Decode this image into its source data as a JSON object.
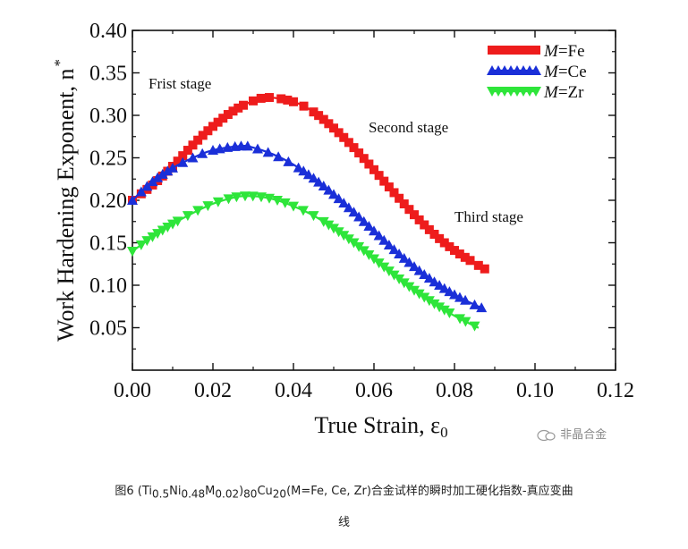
{
  "chart_data": {
    "type": "line",
    "xlabel": "True Strain, ε",
    "xlabel_sub": "0",
    "ylabel": "Work Hardening Exponent, n",
    "ylabel_sup": "*",
    "xlim": [
      0.0,
      0.12
    ],
    "ylim": [
      0.0,
      0.4
    ],
    "x_ticks": [
      "0.00",
      "0.02",
      "0.04",
      "0.06",
      "0.08",
      "0.10",
      "0.12"
    ],
    "y_ticks": [
      "0.05",
      "0.10",
      "0.15",
      "0.20",
      "0.25",
      "0.30",
      "0.35",
      "0.40"
    ],
    "legend_position": "top-right",
    "series": [
      {
        "name": "M=Fe",
        "legend_italic": "M",
        "legend_rest": "=Fe",
        "color": "#ee1c1c",
        "marker": "square",
        "x": [
          0.0,
          0.005,
          0.01,
          0.015,
          0.02,
          0.025,
          0.03,
          0.034,
          0.04,
          0.045,
          0.05,
          0.055,
          0.06,
          0.065,
          0.07,
          0.075,
          0.08,
          0.085,
          0.088
        ],
        "y": [
          0.2,
          0.218,
          0.24,
          0.265,
          0.287,
          0.305,
          0.317,
          0.321,
          0.316,
          0.304,
          0.285,
          0.262,
          0.236,
          0.209,
          0.183,
          0.16,
          0.141,
          0.126,
          0.118
        ]
      },
      {
        "name": "M=Ce",
        "legend_italic": "M",
        "legend_rest": "=Ce",
        "color": "#1a2fd8",
        "marker": "triangle-up",
        "x": [
          0.0,
          0.005,
          0.01,
          0.015,
          0.02,
          0.027,
          0.03,
          0.035,
          0.04,
          0.045,
          0.05,
          0.055,
          0.06,
          0.065,
          0.07,
          0.075,
          0.08,
          0.085,
          0.087
        ],
        "y": [
          0.2,
          0.222,
          0.238,
          0.25,
          0.259,
          0.264,
          0.262,
          0.254,
          0.242,
          0.226,
          0.207,
          0.186,
          0.164,
          0.142,
          0.122,
          0.104,
          0.089,
          0.077,
          0.073
        ]
      },
      {
        "name": "M=Zr",
        "legend_italic": "M",
        "legend_rest": "=Zr",
        "color": "#2ee53a",
        "marker": "triangle-down",
        "x": [
          0.0,
          0.005,
          0.01,
          0.015,
          0.02,
          0.025,
          0.028,
          0.032,
          0.036,
          0.04,
          0.045,
          0.05,
          0.055,
          0.06,
          0.065,
          0.07,
          0.075,
          0.08,
          0.085,
          0.086
        ],
        "y": [
          0.14,
          0.157,
          0.172,
          0.185,
          0.196,
          0.203,
          0.205,
          0.204,
          0.2,
          0.193,
          0.182,
          0.167,
          0.15,
          0.131,
          0.112,
          0.094,
          0.078,
          0.064,
          0.052,
          0.05
        ]
      }
    ],
    "annotations": [
      {
        "text": "Frist stage"
      },
      {
        "text": "Second stage"
      },
      {
        "text": "Third stage"
      }
    ]
  },
  "watermark": {
    "text": "非晶合金",
    "icon": "chat-bubble-icon"
  },
  "caption": {
    "line1_parts": [
      "图6 (Ti",
      "0.5",
      "Ni",
      "0.48",
      "M",
      "0.02",
      ")",
      "80",
      "Cu",
      "20",
      "(M=Fe, Ce, Zr)合金试样的瞬时加工硬化指数-真应变曲"
    ],
    "line2": "线"
  }
}
